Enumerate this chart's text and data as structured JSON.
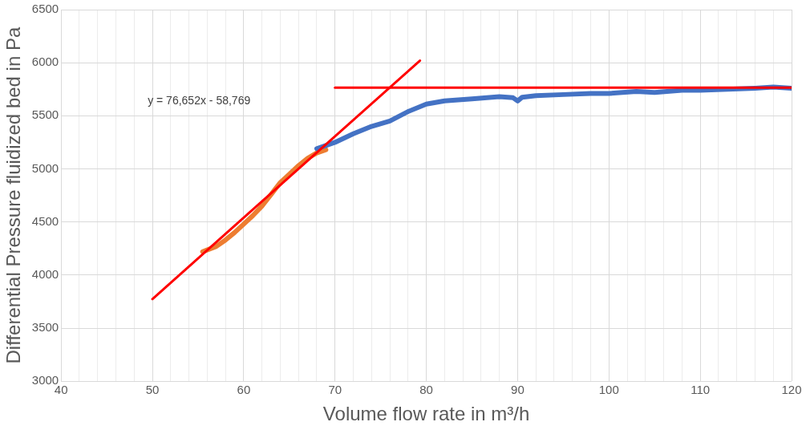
{
  "chart_data": {
    "type": "line",
    "xlabel": "Volume flow rate in m³/h",
    "ylabel": "Differential Pressure fluidized bed in Pa",
    "xlim": [
      40,
      120
    ],
    "ylim": [
      3000,
      6500
    ],
    "xticks": [
      40,
      {
        "value": 42,
        "label": null
      },
      {
        "value": 44,
        "label": null
      },
      {
        "value": 46,
        "label": null
      },
      {
        "value": 48,
        "label": null
      },
      50,
      {
        "value": 52,
        "label": null
      },
      {
        "value": 54,
        "label": null
      },
      {
        "value": 56,
        "label": null
      },
      {
        "value": 58,
        "label": null
      },
      60,
      {
        "value": 62,
        "label": null
      },
      {
        "value": 64,
        "label": null
      },
      {
        "value": 66,
        "label": null
      },
      {
        "value": 68,
        "label": null
      },
      70,
      {
        "value": 72,
        "label": null
      },
      {
        "value": 74,
        "label": null
      },
      {
        "value": 76,
        "label": null
      },
      {
        "value": 78,
        "label": null
      },
      80,
      {
        "value": 82,
        "label": null
      },
      {
        "value": 84,
        "label": null
      },
      {
        "value": 86,
        "label": null
      },
      {
        "value": 88,
        "label": null
      },
      90,
      {
        "value": 92,
        "label": null
      },
      {
        "value": 94,
        "label": null
      },
      {
        "value": 96,
        "label": null
      },
      {
        "value": 98,
        "label": null
      },
      100,
      {
        "value": 102,
        "label": null
      },
      {
        "value": 104,
        "label": null
      },
      {
        "value": 106,
        "label": null
      },
      {
        "value": 108,
        "label": null
      },
      110,
      {
        "value": 112,
        "label": null
      },
      {
        "value": 114,
        "label": null
      },
      {
        "value": 116,
        "label": null
      },
      {
        "value": 118,
        "label": null
      },
      120
    ],
    "yticks": [
      3000,
      3500,
      4000,
      4500,
      5000,
      5500,
      6000,
      6500
    ],
    "grid": true,
    "marker": "none",
    "line_style": "solid",
    "annotations": [
      "y = 76,652x - 58,769"
    ],
    "series": [
      {
        "color": "#4472c4",
        "x": [
          68,
          70,
          72,
          74,
          76,
          78,
          80,
          82,
          85,
          88,
          89.5,
          90,
          90.5,
          92,
          95,
          98,
          100,
          103,
          105,
          108,
          110,
          113,
          116,
          118,
          120
        ],
        "values": [
          5190,
          5250,
          5330,
          5400,
          5450,
          5540,
          5610,
          5640,
          5660,
          5680,
          5670,
          5640,
          5675,
          5690,
          5700,
          5710,
          5710,
          5730,
          5720,
          5740,
          5740,
          5750,
          5760,
          5770,
          5760
        ]
      },
      {
        "color": "#ed7d31",
        "x": [
          55.5,
          57,
          58,
          59,
          60,
          61,
          62,
          63,
          64,
          65,
          66,
          67,
          68,
          69
        ],
        "values": [
          4220,
          4270,
          4330,
          4400,
          4480,
          4560,
          4650,
          4760,
          4870,
          4950,
          5030,
          5100,
          5150,
          5180
        ]
      },
      {
        "color": "#ff0000",
        "x": [
          50,
          79.3
        ],
        "values": [
          3774,
          6020
        ]
      },
      {
        "color": "#ff0000",
        "x": [
          70,
          120
        ],
        "values": [
          5765,
          5765
        ]
      }
    ]
  }
}
